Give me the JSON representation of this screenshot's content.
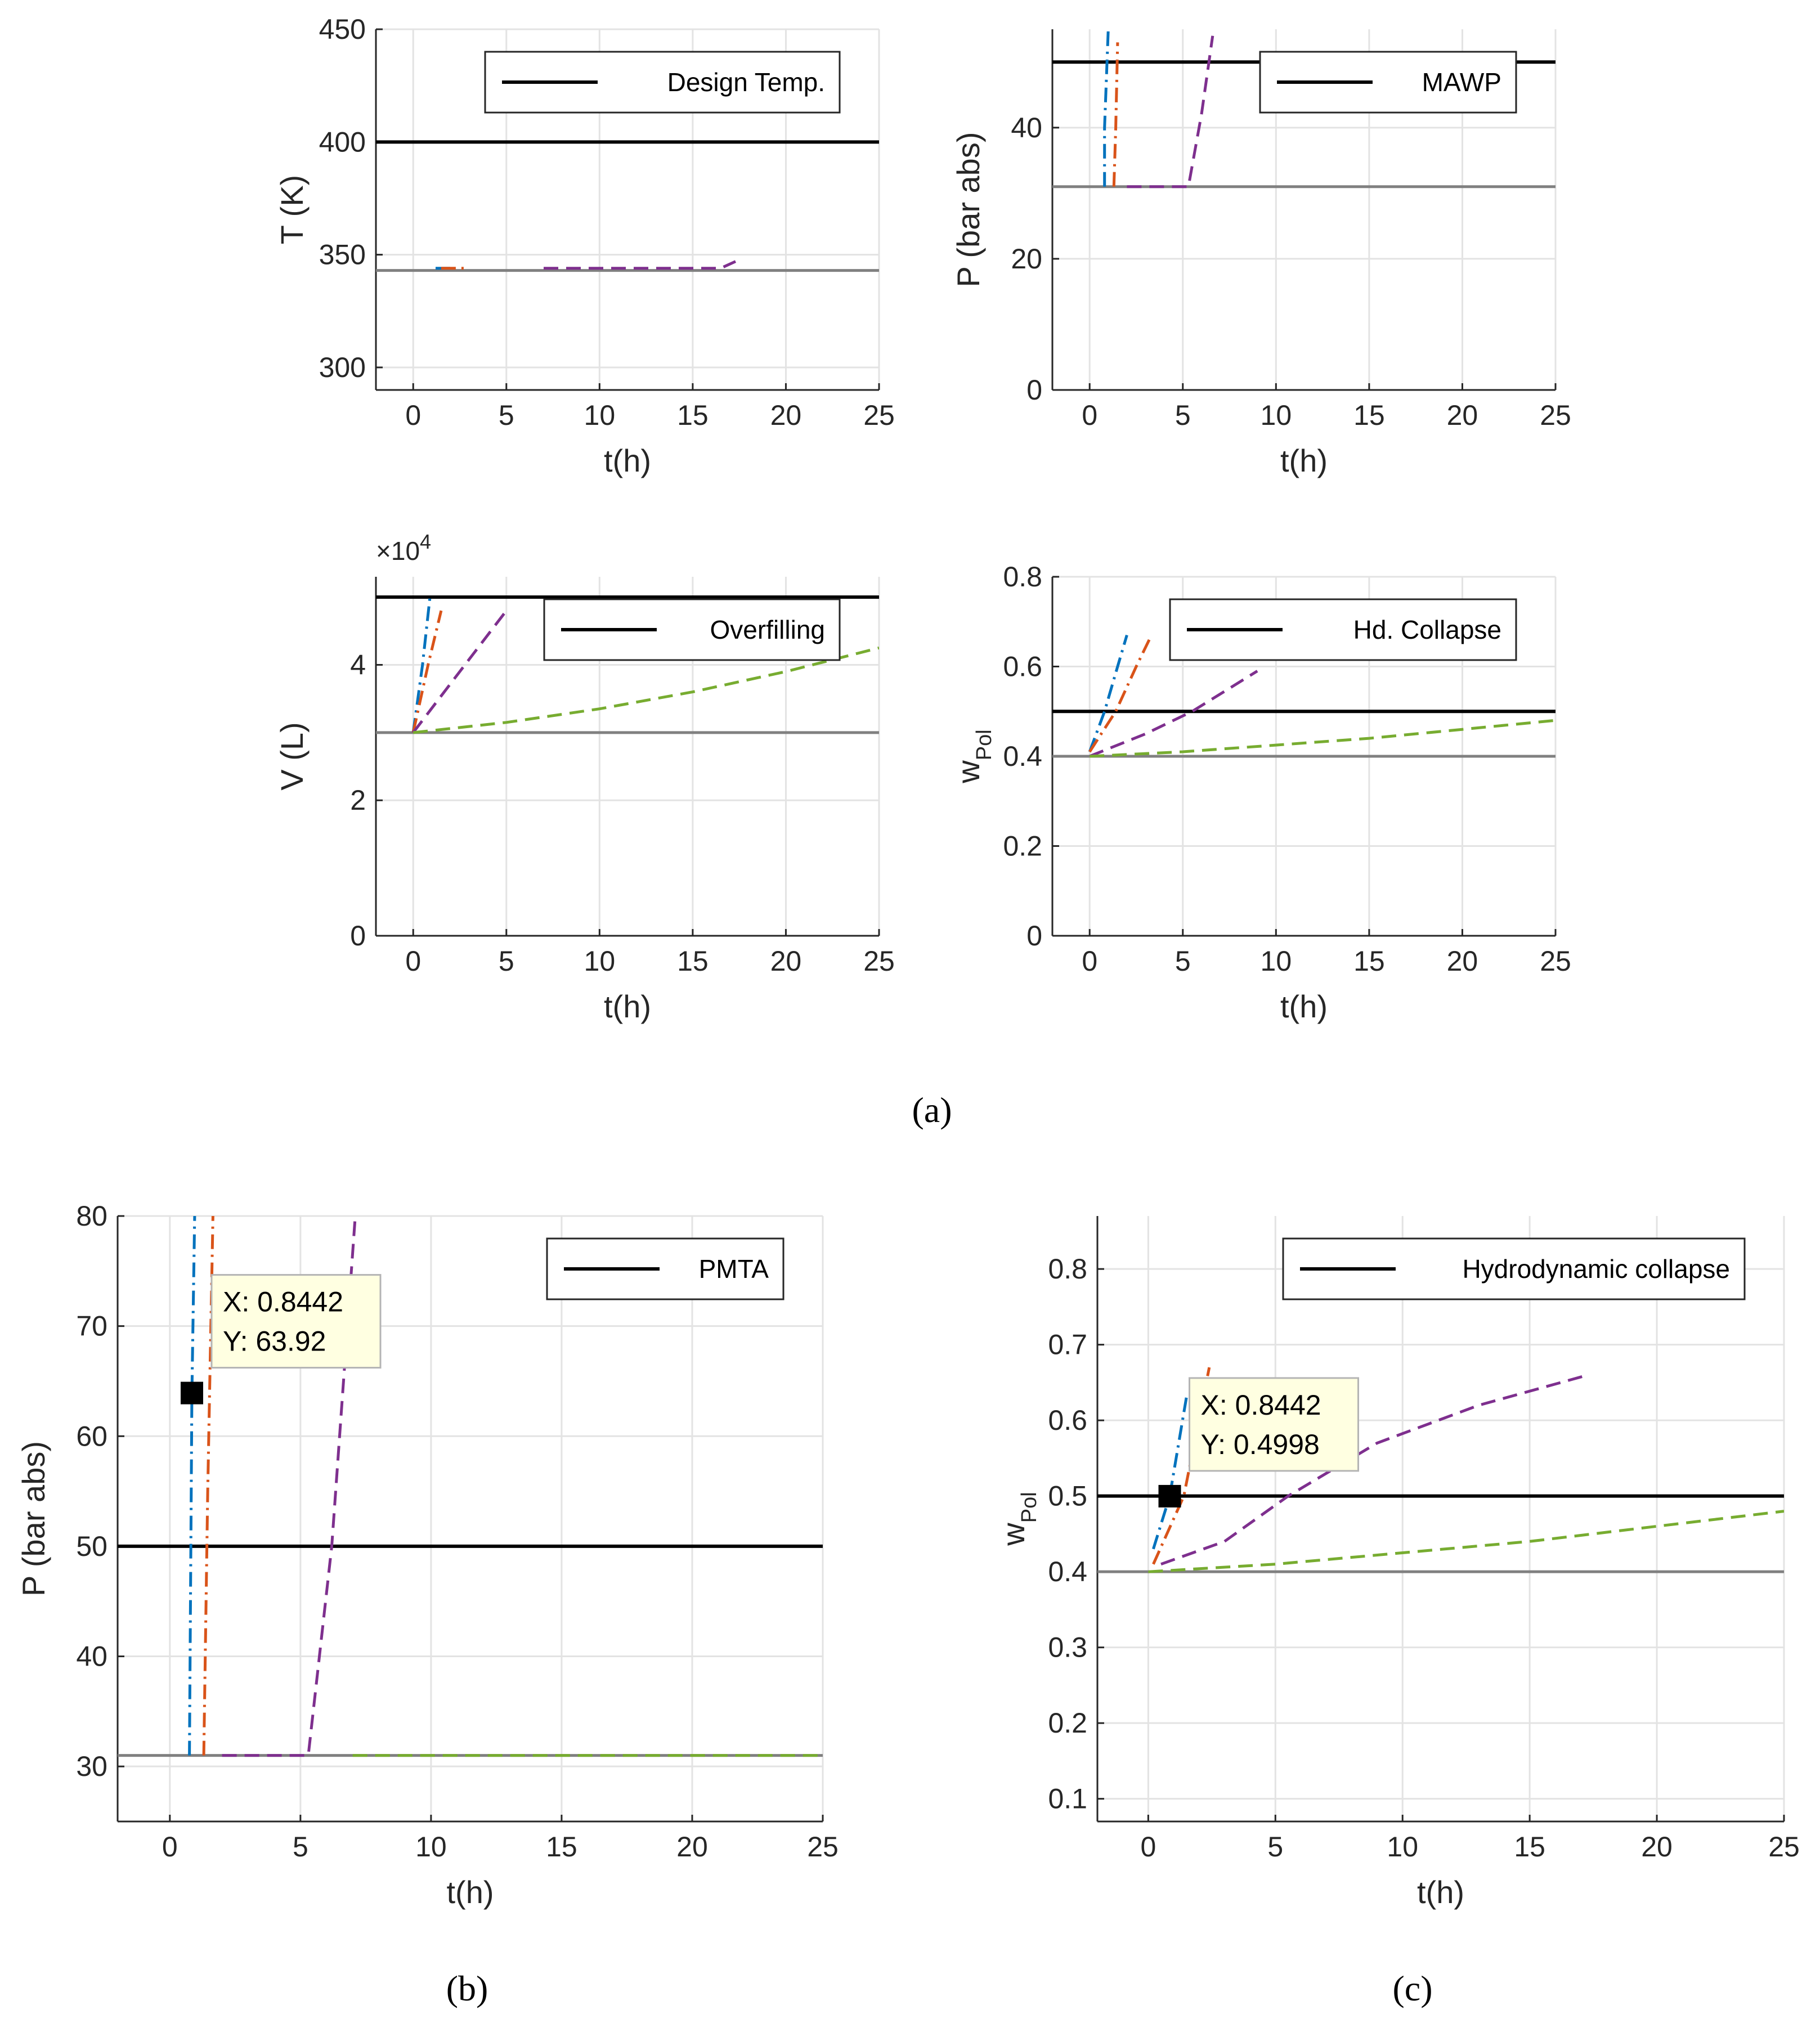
{
  "figure": {
    "captions": [
      "(a)",
      "(b)",
      "(c)"
    ],
    "colors": {
      "threshold": "#000000",
      "baseline": "#808080",
      "grid": "#e3e3e3",
      "axis": "#262626",
      "series_1": "#0072BD",
      "series_2": "#D95319",
      "series_3": "#7E2F8E",
      "series_4": "#77AC30",
      "tooltip_bg": "#ffffe1"
    }
  },
  "chart_data": [
    {
      "id": "a_temperature",
      "type": "line",
      "panel": "(a)",
      "xlabel": "t(h)",
      "ylabel": "T (K)",
      "xlim": [
        -2,
        25
      ],
      "ylim": [
        290,
        450
      ],
      "xticks": [
        0,
        5,
        10,
        15,
        20,
        25
      ],
      "yticks": [
        300,
        350,
        400,
        450
      ],
      "grid": true,
      "legend": {
        "label": "Design Temp.",
        "placement": "top-right"
      },
      "threshold": 400,
      "baseline": 343,
      "series": [
        {
          "name": "series 1",
          "style": "dash-dot",
          "color": "#0072BD",
          "x": [
            1.2,
            2.0
          ],
          "y": [
            344,
            344
          ]
        },
        {
          "name": "series 2",
          "style": "dash-dot",
          "color": "#D95319",
          "x": [
            1.5,
            3.0
          ],
          "y": [
            344,
            344
          ]
        },
        {
          "name": "series 3",
          "style": "dashed",
          "color": "#7E2F8E",
          "x": [
            7,
            12,
            16.5,
            17.3
          ],
          "y": [
            344,
            344,
            344,
            347
          ]
        }
      ]
    },
    {
      "id": "a_pressure",
      "type": "line",
      "panel": "(a)",
      "xlabel": "t(h)",
      "ylabel": "P (bar abs)",
      "xlim": [
        -2,
        25
      ],
      "ylim": [
        0,
        55
      ],
      "xticks": [
        0,
        5,
        10,
        15,
        20,
        25
      ],
      "yticks": [
        0,
        20,
        40
      ],
      "grid": true,
      "legend": {
        "label": "MAWP",
        "placement": "top-right"
      },
      "threshold": 50,
      "baseline": 31,
      "series": [
        {
          "name": "series 1",
          "style": "dash-dot",
          "color": "#0072BD",
          "x": [
            0.8,
            0.8,
            1.0
          ],
          "y": [
            31,
            40,
            55
          ]
        },
        {
          "name": "series 2",
          "style": "dash-dot",
          "color": "#D95319",
          "x": [
            1.3,
            1.4,
            1.5
          ],
          "y": [
            31,
            40,
            53
          ]
        },
        {
          "name": "series 3",
          "style": "dashed",
          "color": "#7E2F8E",
          "x": [
            2,
            5.3,
            6.0,
            6.6
          ],
          "y": [
            31,
            31,
            42,
            54
          ]
        }
      ]
    },
    {
      "id": "a_volume",
      "type": "line",
      "panel": "(a)",
      "xlabel": "t(h)",
      "ylabel": "V (L)",
      "yscale_label": "×10",
      "yscale_exp": "4",
      "xlim": [
        -2,
        25
      ],
      "ylim": [
        0,
        5.3
      ],
      "xticks": [
        0,
        5,
        10,
        15,
        20,
        25
      ],
      "yticks": [
        0,
        2,
        4
      ],
      "grid": true,
      "legend": {
        "label": "Overfilling",
        "placement": "top-right"
      },
      "threshold": 5,
      "baseline": 3,
      "series": [
        {
          "name": "series 1",
          "style": "dash-dot",
          "color": "#0072BD",
          "x": [
            0,
            0.5,
            0.9
          ],
          "y": [
            3.0,
            4.0,
            5.0
          ]
        },
        {
          "name": "series 2",
          "style": "dash-dot",
          "color": "#D95319",
          "x": [
            0,
            0.8,
            1.5
          ],
          "y": [
            3.0,
            4.0,
            4.8
          ]
        },
        {
          "name": "series 3",
          "style": "dashed",
          "color": "#7E2F8E",
          "x": [
            0,
            2.5,
            5
          ],
          "y": [
            3.0,
            3.9,
            4.8
          ]
        },
        {
          "name": "series 4",
          "style": "dashed",
          "color": "#77AC30",
          "x": [
            0,
            5,
            10,
            15,
            20,
            25
          ],
          "y": [
            3.0,
            3.15,
            3.35,
            3.6,
            3.9,
            4.25
          ]
        }
      ]
    },
    {
      "id": "a_wpol",
      "type": "line",
      "panel": "(a)",
      "xlabel": "t(h)",
      "ylabel": "w",
      "ylabel_sub": "Pol",
      "xlim": [
        -2,
        25
      ],
      "ylim": [
        0,
        0.8
      ],
      "xticks": [
        0,
        5,
        10,
        15,
        20,
        25
      ],
      "yticks": [
        0,
        0.2,
        0.4,
        0.6,
        0.8
      ],
      "grid": true,
      "legend": {
        "label": "Hd. Collapse",
        "placement": "top-right"
      },
      "threshold": 0.5,
      "baseline": 0.4,
      "series": [
        {
          "name": "series 1",
          "style": "dash-dot",
          "color": "#0072BD",
          "x": [
            0,
            0.8,
            1.5,
            2.0
          ],
          "y": [
            0.41,
            0.5,
            0.6,
            0.67
          ]
        },
        {
          "name": "series 2",
          "style": "dash-dot",
          "color": "#D95319",
          "x": [
            0,
            1.4,
            2.5,
            3.2
          ],
          "y": [
            0.41,
            0.5,
            0.6,
            0.66
          ]
        },
        {
          "name": "series 3",
          "style": "dashed",
          "color": "#7E2F8E",
          "x": [
            0,
            3,
            5.5,
            9.0
          ],
          "y": [
            0.4,
            0.45,
            0.5,
            0.59
          ]
        },
        {
          "name": "series 4",
          "style": "dashed",
          "color": "#77AC30",
          "x": [
            0,
            5,
            10,
            15,
            20,
            25
          ],
          "y": [
            0.4,
            0.41,
            0.425,
            0.44,
            0.46,
            0.48
          ]
        }
      ]
    },
    {
      "id": "b_pressure",
      "type": "line",
      "panel": "(b)",
      "xlabel": "t(h)",
      "ylabel": "P (bar abs)",
      "xlim": [
        -2,
        25
      ],
      "ylim": [
        25,
        80
      ],
      "xticks": [
        0,
        5,
        10,
        15,
        20,
        25
      ],
      "yticks": [
        30,
        40,
        50,
        60,
        70,
        80
      ],
      "grid": true,
      "legend": {
        "label": "PMTA",
        "placement": "top-right"
      },
      "threshold": 50,
      "baseline": 31,
      "datatip": {
        "x_label": "X: 0.8442",
        "y_label": "Y: 63.92",
        "x": 0.8442,
        "y": 63.92
      },
      "series": [
        {
          "name": "series 1",
          "style": "dash-dot",
          "color": "#0072BD",
          "x": [
            0.75,
            0.8442,
            0.95
          ],
          "y": [
            31,
            63.92,
            80
          ]
        },
        {
          "name": "series 2",
          "style": "dash-dot",
          "color": "#D95319",
          "x": [
            1.3,
            1.45,
            1.65
          ],
          "y": [
            31,
            55,
            80
          ]
        },
        {
          "name": "series 3",
          "style": "dashed",
          "color": "#7E2F8E",
          "x": [
            2,
            5.3,
            6.2,
            7.1
          ],
          "y": [
            31,
            31,
            50,
            80
          ]
        },
        {
          "name": "series 4",
          "style": "dashed",
          "color": "#77AC30",
          "x": [
            7,
            25
          ],
          "y": [
            31,
            31
          ]
        }
      ]
    },
    {
      "id": "c_wpol",
      "type": "line",
      "panel": "(c)",
      "xlabel": "t(h)",
      "ylabel": "w",
      "ylabel_sub": "Pol",
      "xlim": [
        -2,
        25
      ],
      "ylim": [
        0.07,
        0.87
      ],
      "xticks": [
        0,
        5,
        10,
        15,
        20,
        25
      ],
      "yticks": [
        0.1,
        0.2,
        0.3,
        0.4,
        0.5,
        0.6,
        0.7,
        0.8
      ],
      "grid": true,
      "legend": {
        "label": "Hydrodynamic collapse",
        "placement": "top-right"
      },
      "threshold": 0.5,
      "baseline": 0.4,
      "datatip": {
        "x_label": "X: 0.8442",
        "y_label": "Y: 0.4998",
        "x": 0.8442,
        "y": 0.4998
      },
      "series": [
        {
          "name": "series 1",
          "style": "dash-dot",
          "color": "#0072BD",
          "x": [
            0.2,
            0.8442,
            1.5
          ],
          "y": [
            0.43,
            0.4998,
            0.63
          ]
        },
        {
          "name": "series 2",
          "style": "dash-dot",
          "color": "#D95319",
          "x": [
            0.2,
            1.4,
            2.4
          ],
          "y": [
            0.41,
            0.5,
            0.67
          ]
        },
        {
          "name": "series 3",
          "style": "dashed",
          "color": "#7E2F8E",
          "x": [
            0.5,
            3,
            5.5,
            9,
            13,
            17.3
          ],
          "y": [
            0.41,
            0.44,
            0.5,
            0.57,
            0.62,
            0.66
          ]
        },
        {
          "name": "series 4",
          "style": "dashed",
          "color": "#77AC30",
          "x": [
            0,
            5,
            10,
            15,
            20,
            25
          ],
          "y": [
            0.4,
            0.41,
            0.425,
            0.44,
            0.46,
            0.48
          ]
        }
      ]
    }
  ]
}
